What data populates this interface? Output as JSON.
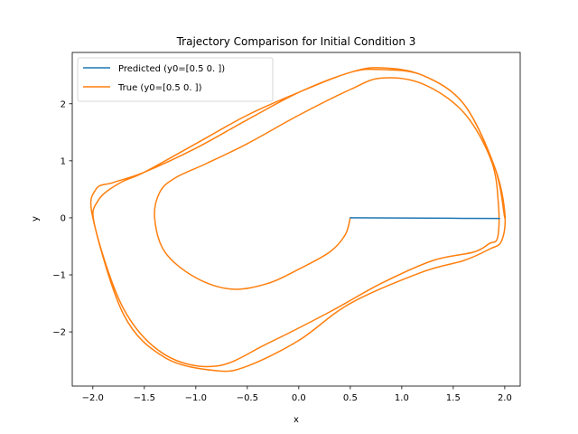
{
  "chart_data": {
    "type": "line",
    "title": "Trajectory Comparison for Initial Condition 3",
    "xlabel": "x",
    "ylabel": "y",
    "xlim": [
      -2.2,
      2.15
    ],
    "ylim": [
      -2.95,
      2.9
    ],
    "xticks": [
      -2.0,
      -1.5,
      -1.0,
      -0.5,
      0.0,
      0.5,
      1.0,
      1.5,
      2.0
    ],
    "xtick_labels": [
      "−2.0",
      "−1.5",
      "−1.0",
      "−0.5",
      "0.0",
      "0.5",
      "1.0",
      "1.5",
      "2.0"
    ],
    "yticks": [
      -2,
      -1,
      0,
      1,
      2
    ],
    "ytick_labels": [
      "−2",
      "−1",
      "0",
      "1",
      "2"
    ],
    "grid": false,
    "legend_position": "top-left",
    "series": [
      {
        "name": "Predicted (y0=[0.5 0. ])",
        "color": "#1f77b4",
        "x": [
          0.5,
          1.0,
          1.5,
          1.95
        ],
        "y": [
          0.0,
          -0.004,
          -0.008,
          -0.012
        ]
      },
      {
        "name": "True (y0=[0.5 0. ])",
        "color": "#ff7f0e",
        "x": [
          0.5,
          0.45,
          0.3,
          0.0,
          -0.3,
          -0.65,
          -1.0,
          -1.3,
          -1.4,
          -1.35,
          -1.2,
          -0.9,
          -0.5,
          0.0,
          0.5,
          0.8,
          1.2,
          1.6,
          1.87,
          1.94,
          1.93,
          1.85,
          1.7,
          1.3,
          0.8,
          0.3,
          -0.3,
          -0.8,
          -1.3,
          -1.7,
          -1.98,
          -1.95,
          -1.75,
          -1.5,
          -1.0,
          -0.5,
          0.0,
          0.5,
          0.8,
          1.2,
          1.6,
          1.9,
          2.0,
          1.97,
          1.85,
          1.6,
          1.2,
          0.5,
          0.0,
          -0.5,
          -0.8,
          -1.3,
          -1.7,
          -2.0,
          -1.97,
          -1.8,
          -1.5,
          -1.0,
          -0.5,
          0.0,
          0.5,
          0.8,
          1.2,
          1.6,
          1.9,
          2.0
        ],
        "y": [
          0.0,
          -0.3,
          -0.6,
          -0.9,
          -1.15,
          -1.25,
          -1.05,
          -0.6,
          0.0,
          0.45,
          0.7,
          0.95,
          1.3,
          1.8,
          2.25,
          2.45,
          2.35,
          1.85,
          1.0,
          0.2,
          -0.35,
          -0.45,
          -0.6,
          -0.75,
          -1.15,
          -1.65,
          -2.2,
          -2.6,
          -2.4,
          -1.6,
          -0.15,
          0.3,
          0.6,
          0.8,
          1.3,
          1.8,
          2.2,
          2.55,
          2.6,
          2.5,
          2.0,
          0.9,
          0.1,
          -0.4,
          -0.55,
          -0.75,
          -0.95,
          -1.5,
          -2.15,
          -2.6,
          -2.68,
          -2.45,
          -1.7,
          0.0,
          0.5,
          0.62,
          0.8,
          1.22,
          1.72,
          2.2,
          2.55,
          2.63,
          2.5,
          2.0,
          0.9,
          0.0
        ]
      }
    ]
  }
}
